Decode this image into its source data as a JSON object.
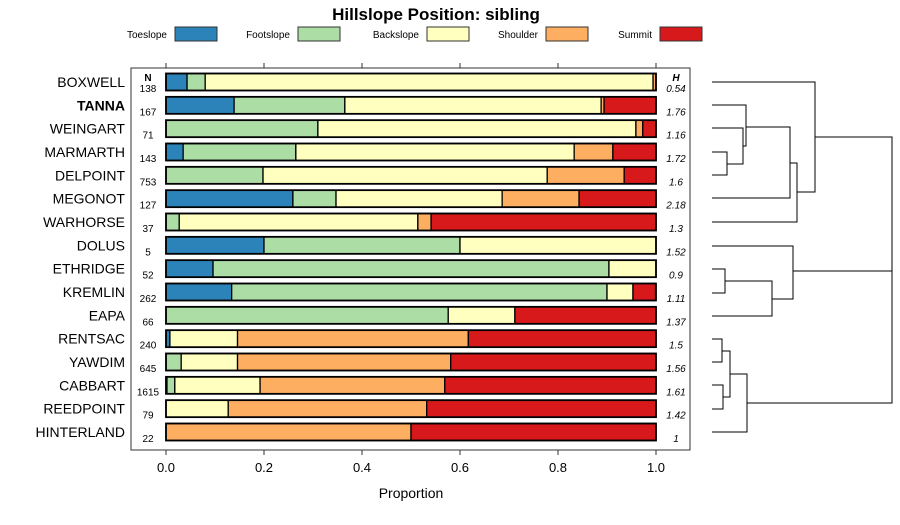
{
  "chart_data": {
    "type": "bar",
    "orientation": "horizontal",
    "stacked": true,
    "title": "Hillslope Position: sibling",
    "xlabel": "Proportion",
    "ylabel": "",
    "xlim": [
      0,
      1
    ],
    "xticks": [
      "0.0",
      "0.2",
      "0.4",
      "0.6",
      "0.8",
      "1.0"
    ],
    "legend": {
      "placement": "top",
      "entries": [
        "Toeslope",
        "Footslope",
        "Backslope",
        "Shoulder",
        "Summit"
      ]
    },
    "colors": [
      "#2B83BA",
      "#ABDDA4",
      "#FFFFBF",
      "#FDAE61",
      "#D7191C"
    ],
    "n_header": "N",
    "h_header": "H",
    "highlight": "TANNA",
    "categories": [
      "BOXWELL",
      "TANNA",
      "WEINGART",
      "MARMARTH",
      "DELPOINT",
      "MEGONOT",
      "WARHORSE",
      "DOLUS",
      "ETHRIDGE",
      "KREMLIN",
      "EAPA",
      "RENTSAC",
      "YAWDIM",
      "CABBART",
      "REEDPOINT",
      "HINTERLAND"
    ],
    "n": [
      "138",
      "167",
      "71",
      "143",
      "753",
      "127",
      "37",
      "5",
      "52",
      "262",
      "66",
      "240",
      "645",
      "1615",
      "79",
      "22"
    ],
    "h": [
      "0.54",
      "1.76",
      "1.16",
      "1.72",
      "1.6",
      "2.18",
      "1.3",
      "1.52",
      "0.9",
      "1.11",
      "1.37",
      "1.5",
      "1.56",
      "1.61",
      "1.42",
      "1"
    ],
    "series": [
      {
        "name": "Toeslope",
        "values": [
          0.043,
          0.139,
          0,
          0.035,
          0,
          0.259,
          0,
          0.2,
          0.096,
          0.134,
          0,
          0.008,
          0,
          0.002,
          0,
          0
        ]
      },
      {
        "name": "Footslope",
        "values": [
          0.037,
          0.226,
          0.31,
          0.23,
          0.198,
          0.088,
          0.027,
          0.4,
          0.808,
          0.766,
          0.576,
          0,
          0.031,
          0.016,
          0,
          0
        ]
      },
      {
        "name": "Backslope",
        "values": [
          0.914,
          0.523,
          0.649,
          0.568,
          0.58,
          0.339,
          0.487,
          0.4,
          0.096,
          0.053,
          0.136,
          0.138,
          0.115,
          0.174,
          0.127,
          0
        ]
      },
      {
        "name": "Shoulder",
        "values": [
          0.006,
          0.006,
          0.014,
          0.079,
          0.157,
          0.157,
          0.027,
          0,
          0,
          0,
          0,
          0.471,
          0.435,
          0.377,
          0.405,
          0.5
        ]
      },
      {
        "name": "Summit",
        "values": [
          0,
          0.106,
          0.027,
          0.088,
          0.065,
          0.157,
          0.459,
          0,
          0,
          0.046,
          0.288,
          0.383,
          0.419,
          0.431,
          0.468,
          0.5
        ]
      }
    ]
  }
}
